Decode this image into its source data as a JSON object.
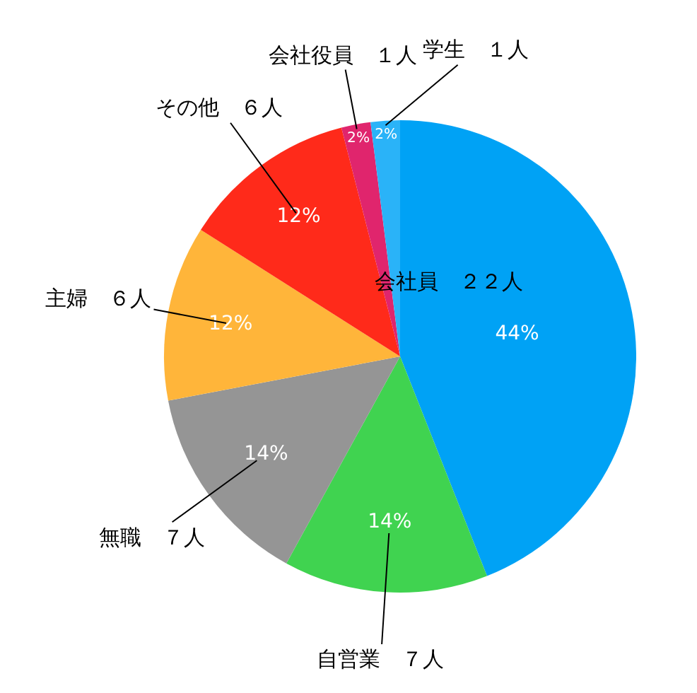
{
  "chart_data": {
    "type": "pie",
    "categories": [
      "会社員　２２人",
      "自営業　７人",
      "無職　７人",
      "主婦　６人",
      "その他　６人",
      "会社役員　１人",
      "学生　１人"
    ],
    "values": [
      44,
      14,
      14,
      12,
      12,
      2,
      2
    ],
    "value_labels": [
      "44%",
      "14%",
      "14%",
      "12%",
      "12%",
      "2%",
      "2%"
    ],
    "colors": [
      "#00a2f5",
      "#40d350",
      "#959595",
      "#ffb53a",
      "#ff2a1a",
      "#e0256d",
      "#2ab3f8"
    ],
    "legend": false
  }
}
